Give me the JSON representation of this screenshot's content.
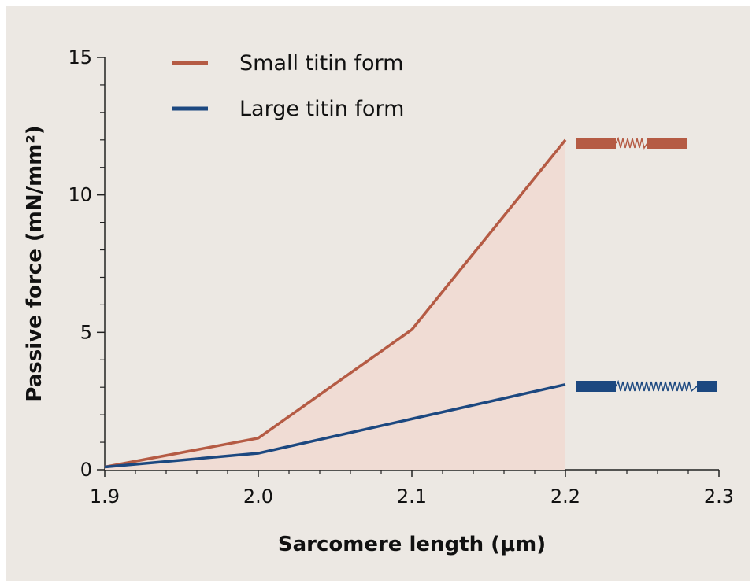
{
  "chart_data": {
    "type": "line",
    "x_label": "Sarcomere length (μm)",
    "y_label": "Passive force (mN/mm²)",
    "x": [
      1.9,
      2.0,
      2.1,
      2.2
    ],
    "series": [
      {
        "name": "Small titin form",
        "color": "#b55b44",
        "values": [
          0.1,
          1.15,
          5.1,
          12.0
        ],
        "fill": "#f0dcd4"
      },
      {
        "name": "Large titin form",
        "color": "#1c4880",
        "values": [
          0.1,
          0.6,
          1.85,
          3.1
        ]
      }
    ],
    "xlim": [
      1.9,
      2.3
    ],
    "ylim": [
      0,
      15
    ],
    "xticks": [
      1.9,
      {
        "value": 2,
        "label": "2.0"
      },
      2.1,
      2.2,
      2.3
    ],
    "yticks": [
      0,
      5,
      10,
      15
    ],
    "xticks_minor": [
      1.92,
      1.94,
      1.96,
      1.98,
      2.02,
      2.04,
      2.06,
      2.08,
      2.12,
      2.14,
      2.16,
      2.18,
      2.22,
      2.24,
      2.26,
      2.28
    ],
    "yticks_minor": [
      1,
      2,
      3,
      4,
      6,
      7,
      8,
      9,
      11,
      12,
      13,
      14
    ],
    "legend": "top-left"
  }
}
